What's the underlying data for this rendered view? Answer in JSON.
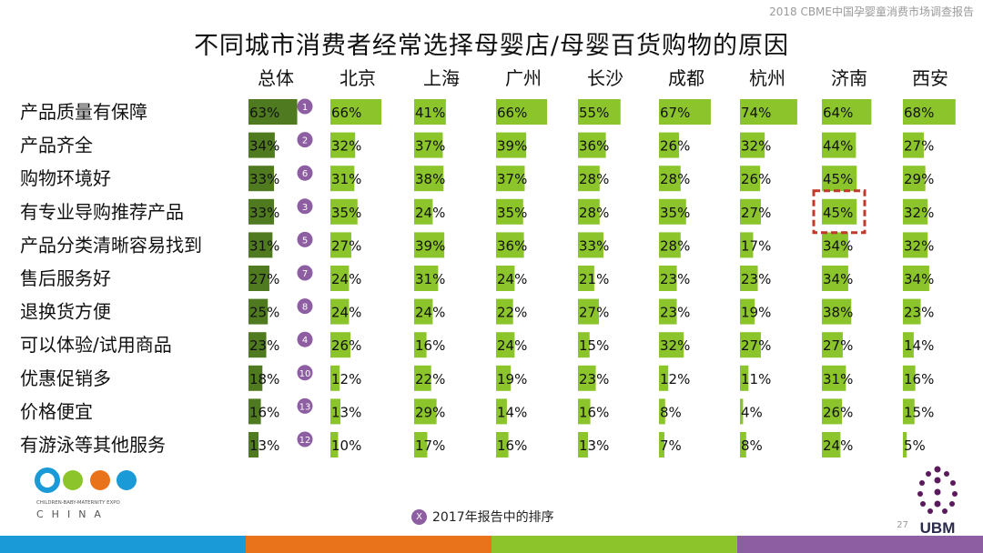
{
  "header": {
    "report_tag": "2018 CBME中国孕婴童消费市场调查报告",
    "title": "不同城市消费者经常选择母婴店/母婴百货购物的原因"
  },
  "chart_data": {
    "type": "bar",
    "title": "不同城市消费者经常选择母婴店/母婴百货购物的原因",
    "orientation": "horizontal-small-multiples",
    "categories": [
      "产品质量有保障",
      "产品齐全",
      "购物环境好",
      "有专业导购推荐产品",
      "产品分类清晰容易找到",
      "售后服务好",
      "退换货方便",
      "可以体验/试用商品",
      "优惠促销多",
      "价格便宜",
      "有游泳等其他服务"
    ],
    "series": [
      {
        "name": "总体",
        "values": [
          63,
          34,
          33,
          33,
          31,
          27,
          25,
          23,
          18,
          16,
          13
        ]
      },
      {
        "name": "北京",
        "values": [
          66,
          32,
          31,
          35,
          27,
          24,
          24,
          26,
          12,
          13,
          10
        ]
      },
      {
        "name": "上海",
        "values": [
          41,
          37,
          38,
          24,
          39,
          31,
          24,
          16,
          22,
          29,
          17
        ]
      },
      {
        "name": "广州",
        "values": [
          66,
          39,
          37,
          35,
          36,
          24,
          22,
          24,
          19,
          14,
          16
        ]
      },
      {
        "name": "长沙",
        "values": [
          55,
          36,
          28,
          28,
          33,
          21,
          27,
          15,
          23,
          16,
          13
        ]
      },
      {
        "name": "成都",
        "values": [
          67,
          26,
          28,
          35,
          28,
          23,
          23,
          32,
          12,
          8,
          7
        ]
      },
      {
        "name": "杭州",
        "values": [
          74,
          32,
          26,
          27,
          17,
          23,
          19,
          27,
          11,
          4,
          8
        ]
      },
      {
        "name": "济南",
        "values": [
          64,
          44,
          45,
          45,
          34,
          34,
          38,
          27,
          31,
          26,
          24
        ]
      },
      {
        "name": "西安",
        "values": [
          68,
          27,
          29,
          32,
          32,
          34,
          23,
          14,
          16,
          15,
          5
        ]
      }
    ],
    "rank_2017": [
      "1",
      "2",
      "6",
      "3",
      "5",
      "7",
      "8",
      "4",
      "10",
      "13",
      "12"
    ],
    "value_suffix": "%",
    "highlight": {
      "series": "济南",
      "category": "有专业导购推荐产品",
      "style": "red-dashed-box"
    },
    "colors": {
      "overall_bar": "#4f7a1f",
      "city_bar": "#8cc42c",
      "rank_badge": "#8e5ea2",
      "highlight": "#c0392b"
    }
  },
  "legend": {
    "badge": "X",
    "label": "2017年报告中的排序"
  },
  "footer": {
    "page_number": "27",
    "ubm_label": "UBM",
    "cbme_logo": {
      "brand": "CBME",
      "tagline": "CHILDREN-BABY-MATERNITY EXPO",
      "country": "CHINA"
    },
    "color_stripes": [
      "#1a9ad6",
      "#e8731a",
      "#8cc42c",
      "#8e5ea2"
    ]
  }
}
